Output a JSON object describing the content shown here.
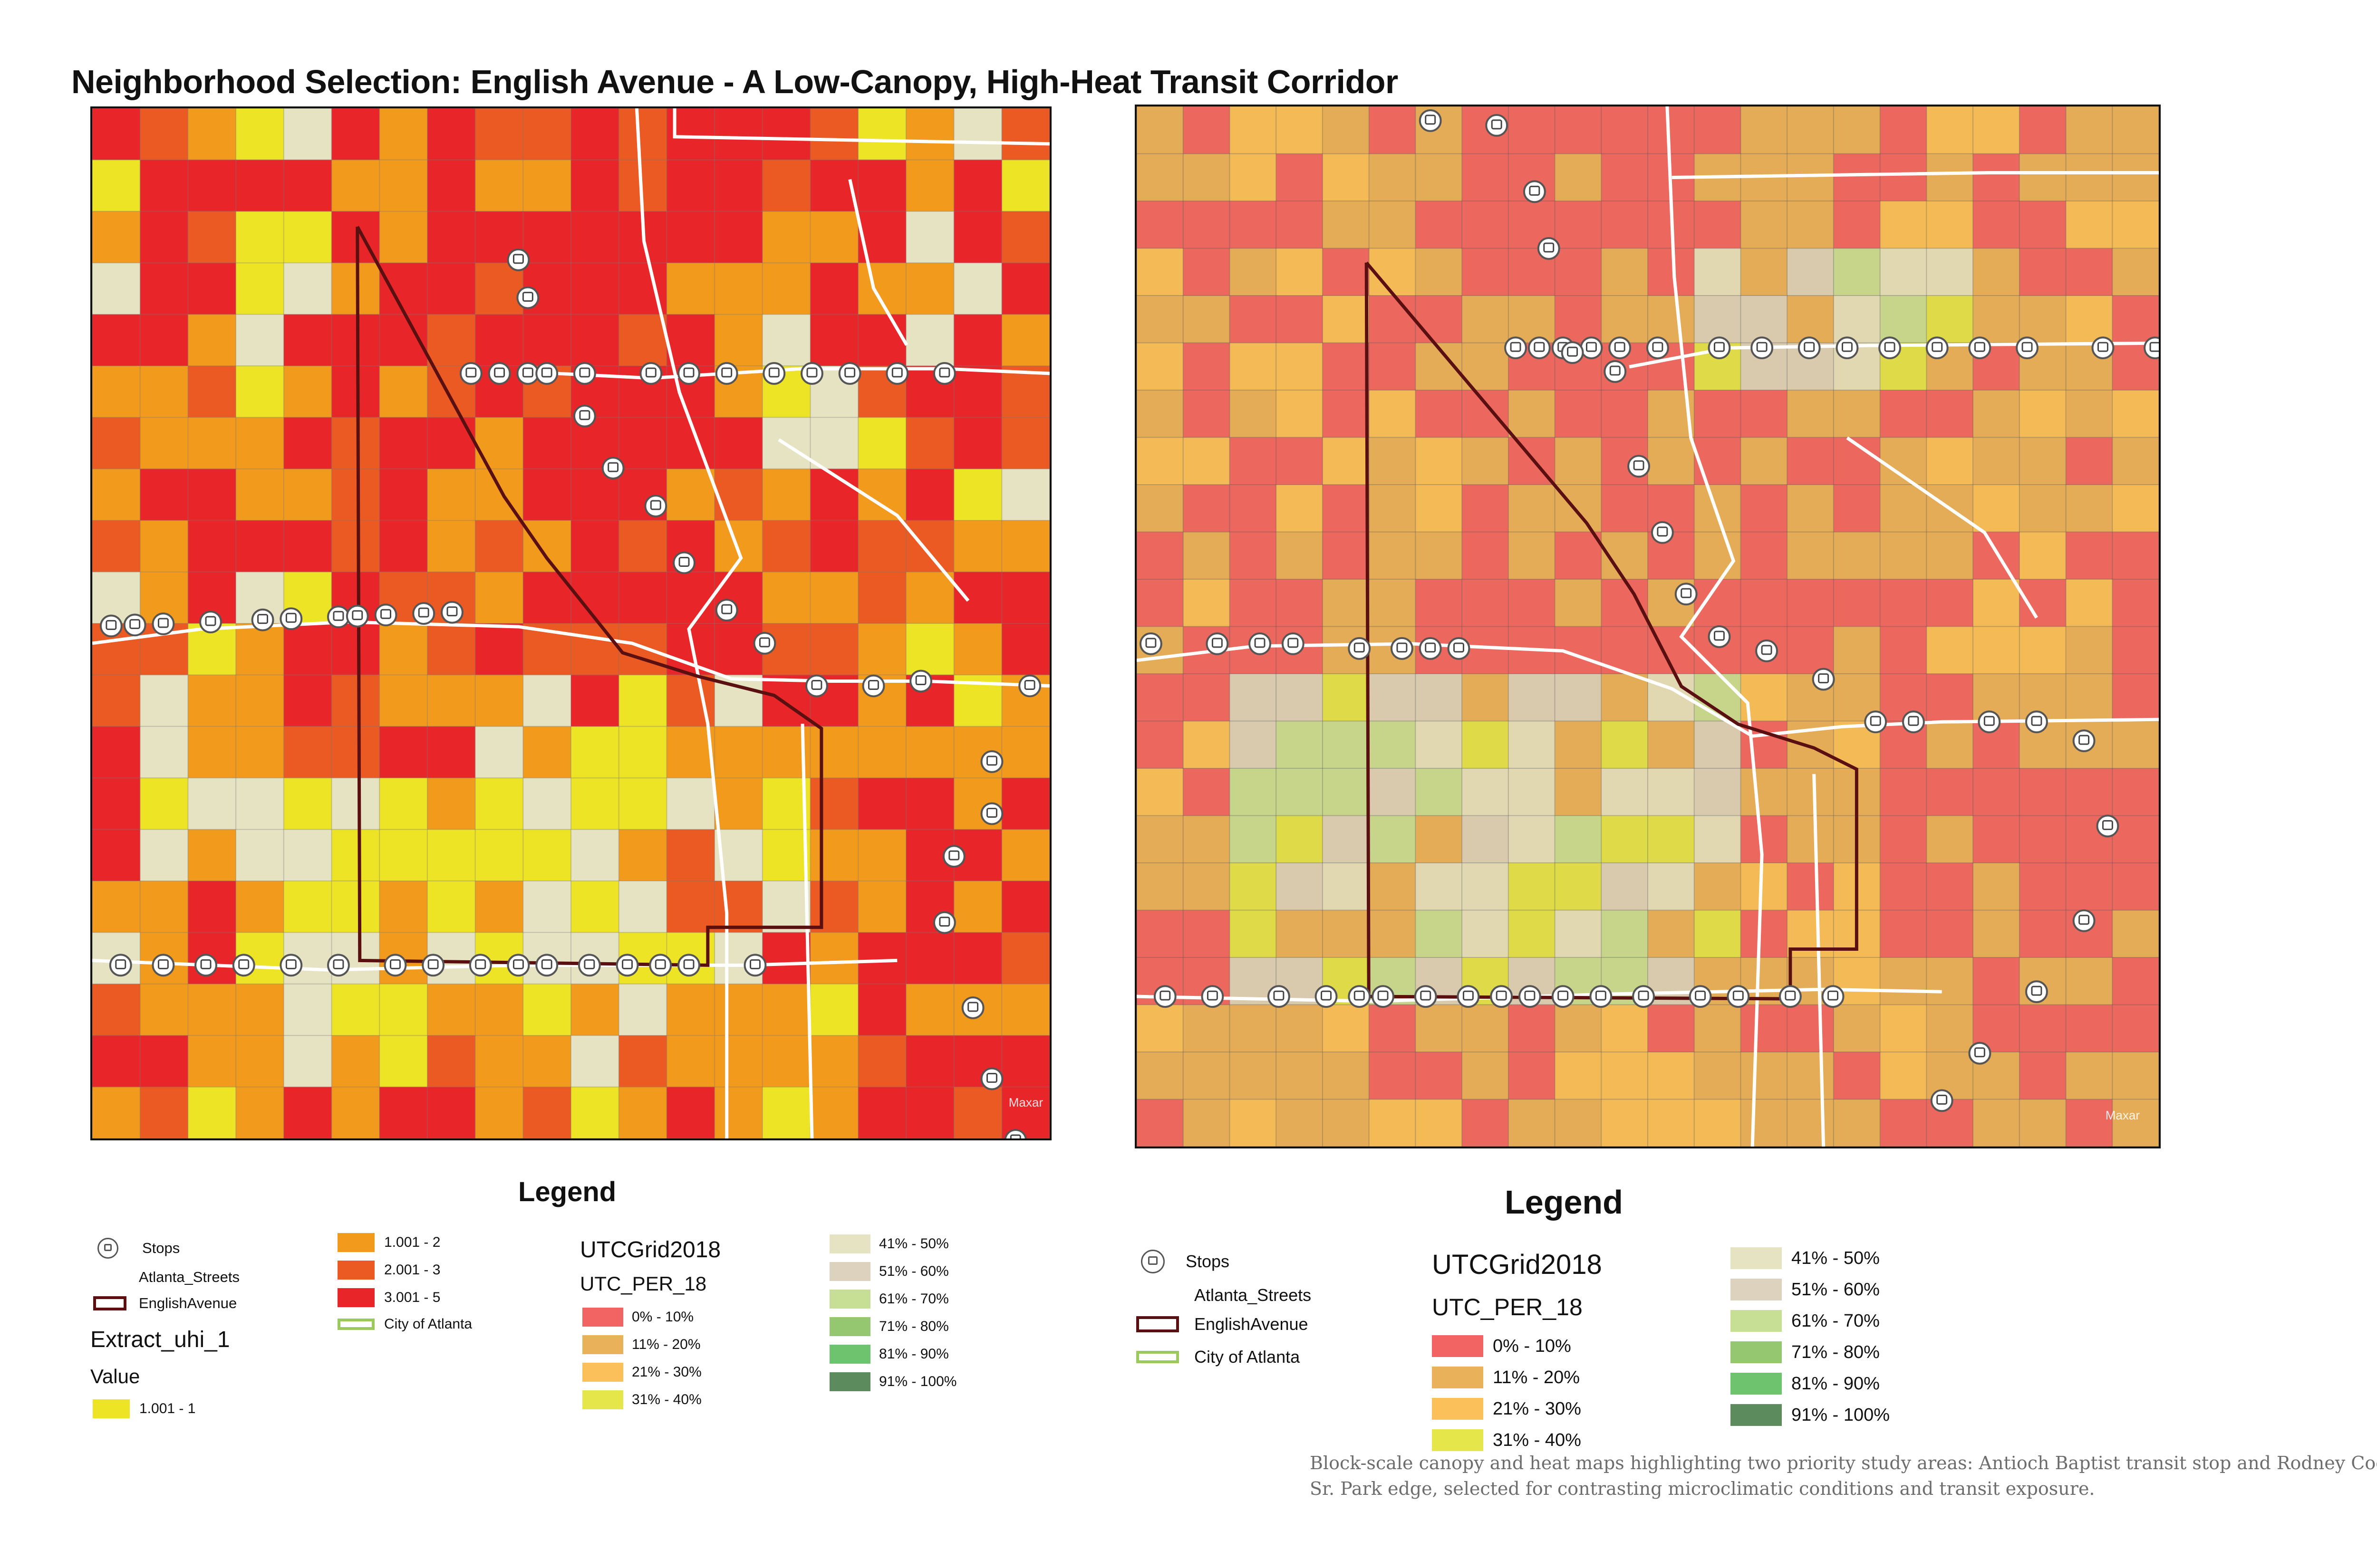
{
  "title": "Neighborhood Selection: English Avenue - A Low-Canopy, High-Heat Transit Corridor",
  "colors": {
    "uhi_1": "#ece424",
    "uhi_2": "#f29a1c",
    "uhi_3": "#eb5a22",
    "uhi_5": "#e8262a",
    "utc_0_10": "#f26363",
    "utc_11_20": "#e9b15a",
    "utc_21_30": "#fbc05a",
    "utc_31_40": "#e4e64a",
    "utc_41_50": "#e6e3c3",
    "utc_51_60": "#ddd2bd",
    "utc_61_70": "#c7df95",
    "utc_71_80": "#94c770",
    "utc_81_90": "#6ec36e",
    "utc_91_100": "#5c8c5e",
    "boundary": "#5a0f10",
    "city": "#9cc95d"
  },
  "maps": {
    "left": {
      "name": "uhi-map",
      "watermark": "Maxar"
    },
    "right": {
      "name": "utc-map",
      "watermark": "Maxar"
    }
  },
  "legend_left": {
    "heading": "Legend",
    "stops": "Stops",
    "streets": "Atlanta_Streets",
    "boundary": "EnglishAvenue",
    "layer": "Extract_uhi_1",
    "value": "Value",
    "uhi": [
      "1.001 - 1",
      "1.001 - 2",
      "2.001 - 3",
      "3.001 - 5"
    ],
    "city": "City of Atlanta",
    "grid": "UTCGrid2018",
    "field": "UTC_PER_18",
    "classes": [
      "0% - 10%",
      "11% - 20%",
      "21% - 30%",
      "31% - 40%",
      "41% - 50%",
      "51% - 60%",
      "61% - 70%",
      "71% - 80%",
      "81% - 90%",
      "91% - 100%"
    ]
  },
  "legend_right": {
    "heading": "Legend",
    "stops": "Stops",
    "streets": "Atlanta_Streets",
    "boundary": "EnglishAvenue",
    "city": "City of Atlanta",
    "grid": "UTCGrid2018",
    "field": "UTC_PER_18",
    "classes": [
      "0% - 10%",
      "11% - 20%",
      "21% - 30%",
      "31% - 40%",
      "41% - 50%",
      "51% - 60%",
      "61% - 70%",
      "71% - 80%",
      "81% - 90%",
      "91% - 100%"
    ]
  },
  "caption": "Block-scale canopy and heat maps highlighting two priority study areas: Antioch Baptist transit stop and Rodney Cook Sr. Park edge, selected for contrasting microclimatic conditions and transit exposure."
}
